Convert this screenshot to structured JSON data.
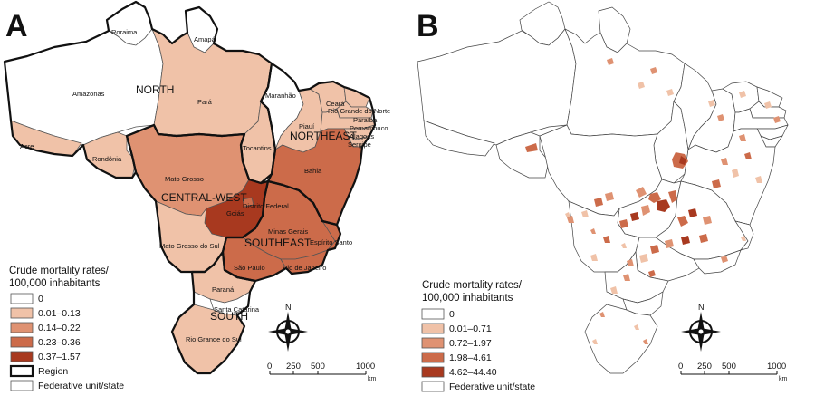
{
  "colors": {
    "none": "#ffffff",
    "c1": "#f0c2a8",
    "c2": "#df9272",
    "c3": "#cc6b4a",
    "c4": "#a8391f",
    "outline": "#111111"
  },
  "panel_a": {
    "letter": "A",
    "regions": [
      "NORTH",
      "NORTHEAST",
      "CENTRAL-WEST",
      "SOUTHEAST",
      "SOUTH"
    ],
    "states": [
      "Roraima",
      "Amapá",
      "Amazonas",
      "Pará",
      "Maranhão",
      "Ceará",
      "Rio Grande do Norte",
      "Paraíba",
      "Pernambuco",
      "Alagoas",
      "Sergipe",
      "Piauí",
      "Acre",
      "Rondônia",
      "Tocantins",
      "Bahia",
      "Mato Grosso",
      "Distrito Federal",
      "Goiás",
      "Minas Gerais",
      "Espírito Santo",
      "Mato Grosso do Sul",
      "São Paulo",
      "Rio de Janeiro",
      "Paraná",
      "Santa Catarina",
      "Rio Grande do Sul"
    ],
    "legend": {
      "title_line1": "Crude mortality rates/",
      "title_line2": "100,000 inhabitants",
      "classes": [
        "0",
        "0.01–0.13",
        "0.14–0.22",
        "0.23–0.36",
        "0.37–1.57"
      ],
      "region_label": "Region",
      "state_label": "Federative unit/state"
    },
    "scale": {
      "ticks": [
        "0",
        "250",
        "500",
        "1000"
      ],
      "unit": "km"
    },
    "compass": "N"
  },
  "panel_b": {
    "letter": "B",
    "legend": {
      "title_line1": "Crude mortality rates/",
      "title_line2": "100,000 inhabitants",
      "classes": [
        "0",
        "0.01–0.71",
        "0.72–1.97",
        "1.98–4.61",
        "4.62–44.40"
      ],
      "state_label": "Federative unit/state"
    },
    "scale": {
      "ticks": [
        "0",
        "250",
        "500",
        "1000"
      ],
      "unit": "km"
    },
    "compass": "N"
  }
}
